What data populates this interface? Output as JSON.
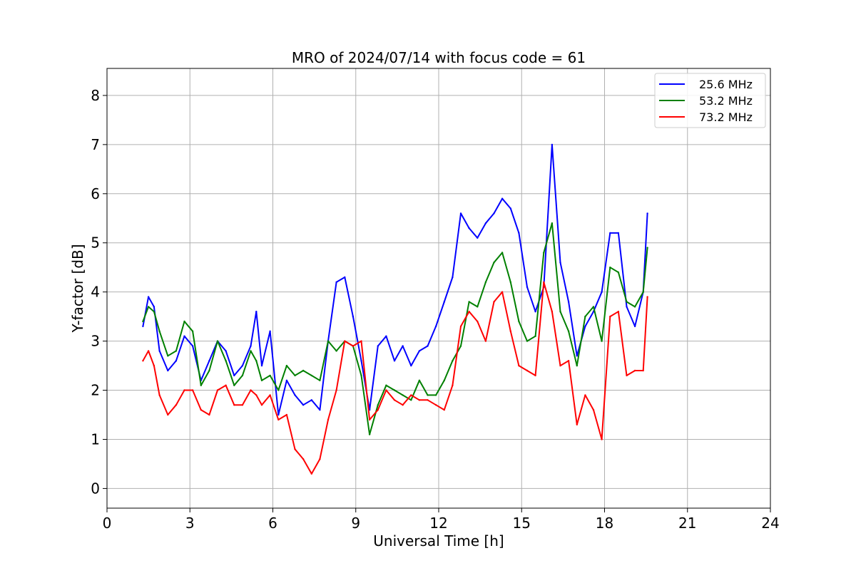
{
  "chart_data": {
    "type": "line",
    "title": "MRO of 2024/07/14 with focus code = 61",
    "xlabel": "Universal Time [h]",
    "ylabel": "Y-factor [dB]",
    "xlim": [
      0,
      24
    ],
    "ylim": [
      -0.4,
      8.55
    ],
    "xticks": [
      0,
      3,
      6,
      9,
      12,
      15,
      18,
      21,
      24
    ],
    "yticks": [
      0,
      1,
      2,
      3,
      4,
      5,
      6,
      7,
      8
    ],
    "grid": true,
    "legend_position": "top-right",
    "series": [
      {
        "name": "25.6 MHz",
        "color": "#0000ff",
        "x": [
          1.3,
          1.5,
          1.7,
          1.9,
          2.2,
          2.5,
          2.8,
          3.1,
          3.4,
          3.7,
          4.0,
          4.3,
          4.6,
          4.9,
          5.2,
          5.4,
          5.6,
          5.9,
          6.2,
          6.5,
          6.8,
          7.1,
          7.4,
          7.7,
          8.0,
          8.3,
          8.6,
          8.9,
          9.2,
          9.5,
          9.8,
          10.1,
          10.4,
          10.7,
          11.0,
          11.3,
          11.6,
          11.9,
          12.2,
          12.5,
          12.8,
          13.1,
          13.4,
          13.7,
          14.0,
          14.3,
          14.6,
          14.9,
          15.2,
          15.5,
          15.8,
          16.1,
          16.4,
          16.7,
          17.0,
          17.3,
          17.6,
          17.9,
          18.2,
          18.5,
          18.8,
          19.1,
          19.4,
          19.55
        ],
        "y": [
          3.3,
          3.9,
          3.7,
          2.8,
          2.4,
          2.6,
          3.1,
          2.9,
          2.2,
          2.6,
          3.0,
          2.8,
          2.3,
          2.5,
          2.9,
          3.6,
          2.5,
          3.2,
          1.5,
          2.2,
          1.9,
          1.7,
          1.8,
          1.6,
          3.0,
          4.2,
          4.3,
          3.5,
          2.6,
          1.6,
          2.9,
          3.1,
          2.6,
          2.9,
          2.5,
          2.8,
          2.9,
          3.3,
          3.8,
          4.3,
          5.6,
          5.3,
          5.1,
          5.4,
          5.6,
          5.9,
          5.7,
          5.2,
          4.1,
          3.6,
          4.1,
          7.0,
          4.6,
          3.8,
          2.7,
          3.3,
          3.6,
          4.0,
          5.2,
          5.2,
          3.7,
          3.3,
          4.0,
          5.6
        ]
      },
      {
        "name": "53.2 MHz",
        "color": "#008000",
        "x": [
          1.3,
          1.5,
          1.7,
          1.9,
          2.2,
          2.5,
          2.8,
          3.1,
          3.4,
          3.7,
          4.0,
          4.3,
          4.6,
          4.9,
          5.2,
          5.4,
          5.6,
          5.9,
          6.2,
          6.5,
          6.8,
          7.1,
          7.4,
          7.7,
          8.0,
          8.3,
          8.6,
          8.9,
          9.2,
          9.5,
          9.8,
          10.1,
          10.4,
          10.7,
          11.0,
          11.3,
          11.6,
          11.9,
          12.2,
          12.5,
          12.8,
          13.1,
          13.4,
          13.7,
          14.0,
          14.3,
          14.6,
          14.9,
          15.2,
          15.5,
          15.8,
          16.1,
          16.4,
          16.7,
          17.0,
          17.3,
          17.6,
          17.9,
          18.2,
          18.5,
          18.8,
          19.1,
          19.4,
          19.55
        ],
        "y": [
          3.4,
          3.7,
          3.6,
          3.2,
          2.7,
          2.8,
          3.4,
          3.2,
          2.1,
          2.4,
          3.0,
          2.6,
          2.1,
          2.3,
          2.8,
          2.6,
          2.2,
          2.3,
          2.0,
          2.5,
          2.3,
          2.4,
          2.3,
          2.2,
          3.0,
          2.8,
          3.0,
          2.9,
          2.3,
          1.1,
          1.7,
          2.1,
          2.0,
          1.9,
          1.8,
          2.2,
          1.9,
          1.9,
          2.2,
          2.6,
          2.9,
          3.8,
          3.7,
          4.2,
          4.6,
          4.8,
          4.2,
          3.4,
          3.0,
          3.1,
          4.8,
          5.4,
          3.6,
          3.2,
          2.5,
          3.5,
          3.7,
          3.0,
          4.5,
          4.4,
          3.8,
          3.7,
          4.0,
          4.9
        ]
      },
      {
        "name": "73.2 MHz",
        "color": "#ff0000",
        "x": [
          1.3,
          1.5,
          1.7,
          1.9,
          2.2,
          2.5,
          2.8,
          3.1,
          3.4,
          3.7,
          4.0,
          4.3,
          4.6,
          4.9,
          5.2,
          5.4,
          5.6,
          5.9,
          6.2,
          6.5,
          6.8,
          7.1,
          7.4,
          7.7,
          8.0,
          8.3,
          8.6,
          8.9,
          9.2,
          9.5,
          9.8,
          10.1,
          10.4,
          10.7,
          11.0,
          11.3,
          11.6,
          11.9,
          12.2,
          12.5,
          12.8,
          13.1,
          13.4,
          13.7,
          14.0,
          14.3,
          14.6,
          14.9,
          15.2,
          15.5,
          15.8,
          16.1,
          16.4,
          16.7,
          17.0,
          17.3,
          17.6,
          17.9,
          18.2,
          18.5,
          18.8,
          19.1,
          19.4,
          19.55
        ],
        "y": [
          2.6,
          2.8,
          2.5,
          1.9,
          1.5,
          1.7,
          2.0,
          2.0,
          1.6,
          1.5,
          2.0,
          2.1,
          1.7,
          1.7,
          2.0,
          1.9,
          1.7,
          1.9,
          1.4,
          1.5,
          0.8,
          0.6,
          0.3,
          0.6,
          1.4,
          2.0,
          3.0,
          2.9,
          3.0,
          1.4,
          1.6,
          2.0,
          1.8,
          1.7,
          1.9,
          1.8,
          1.8,
          1.7,
          1.6,
          2.1,
          3.3,
          3.6,
          3.4,
          3.0,
          3.8,
          4.0,
          3.2,
          2.5,
          2.4,
          2.3,
          4.2,
          3.6,
          2.5,
          2.6,
          1.3,
          1.9,
          1.6,
          1.0,
          3.5,
          3.6,
          2.3,
          2.4,
          2.4,
          3.9
        ]
      }
    ]
  }
}
